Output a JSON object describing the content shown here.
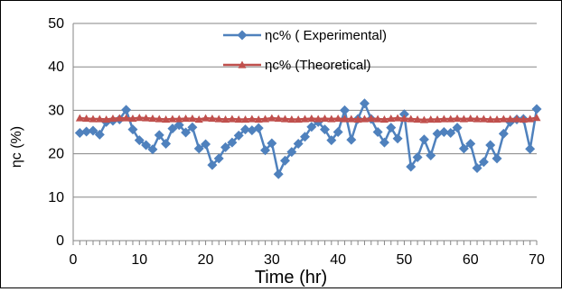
{
  "chart_data": {
    "type": "line",
    "xlabel": "Time (hr)",
    "ylabel": "ηc (%)",
    "xlim": [
      0,
      70
    ],
    "ylim": [
      0,
      50
    ],
    "x_ticks": [
      0,
      10,
      20,
      30,
      40,
      50,
      60,
      70
    ],
    "y_ticks": [
      0,
      10,
      20,
      30,
      40,
      50
    ],
    "grid": "horizontal",
    "legend_position": "top-center",
    "x": [
      1,
      2,
      3,
      4,
      5,
      6,
      7,
      8,
      9,
      10,
      11,
      12,
      13,
      14,
      15,
      16,
      17,
      18,
      19,
      20,
      21,
      22,
      23,
      24,
      25,
      26,
      27,
      28,
      29,
      30,
      31,
      32,
      33,
      34,
      35,
      36,
      37,
      38,
      39,
      40,
      41,
      42,
      43,
      44,
      45,
      46,
      47,
      48,
      49,
      50,
      51,
      52,
      53,
      54,
      55,
      56,
      57,
      58,
      59,
      60,
      61,
      62,
      63,
      64,
      65,
      66,
      67,
      68,
      69,
      70
    ],
    "series": [
      {
        "name": "ηc% ( Experimental)",
        "color": "#4F81BD",
        "marker": "diamond",
        "values": [
          24.8,
          25.1,
          25.3,
          24.4,
          27.3,
          27.6,
          27.9,
          30.1,
          25.6,
          23.1,
          22.0,
          21.0,
          24.3,
          22.3,
          25.8,
          26.6,
          24.9,
          26.1,
          21.2,
          22.2,
          17.4,
          18.9,
          21.5,
          22.6,
          24.2,
          25.6,
          25.4,
          25.9,
          20.8,
          22.4,
          15.3,
          18.4,
          20.4,
          22.3,
          23.9,
          26.2,
          27.3,
          25.6,
          23.1,
          25.0,
          30.0,
          23.2,
          28.0,
          31.6,
          28.0,
          25.0,
          22.6,
          26.0,
          23.5,
          29.1,
          17.0,
          19.2,
          23.3,
          19.6,
          24.6,
          25.0,
          24.8,
          26.0,
          21.2,
          22.3,
          16.7,
          18.1,
          22.0,
          18.9,
          24.6,
          27.3,
          27.9,
          28.0,
          21.1,
          30.3
        ]
      },
      {
        "name": "ηc% (Theoretical)",
        "color": "#C0504D",
        "marker": "triangle",
        "values": [
          28.2,
          28.1,
          28.0,
          28.0,
          27.9,
          28.1,
          28.2,
          28.2,
          28.1,
          28.3,
          28.2,
          28.1,
          28.0,
          27.9,
          28.0,
          28.0,
          28.1,
          28.1,
          27.9,
          28.2,
          28.1,
          28.0,
          27.9,
          28.0,
          27.9,
          27.9,
          28.0,
          27.9,
          28.0,
          28.2,
          28.1,
          28.0,
          27.9,
          27.9,
          28.0,
          28.1,
          28.0,
          28.1,
          28.0,
          28.1,
          28.0,
          28.0,
          27.9,
          28.0,
          28.1,
          28.0,
          27.9,
          28.1,
          28.2,
          28.1,
          28.0,
          27.9,
          27.8,
          27.9,
          27.9,
          28.0,
          28.0,
          28.1,
          28.0,
          28.1,
          28.0,
          28.0,
          27.9,
          27.9,
          28.0,
          28.0,
          28.0,
          27.9,
          28.0,
          28.3
        ]
      }
    ]
  }
}
